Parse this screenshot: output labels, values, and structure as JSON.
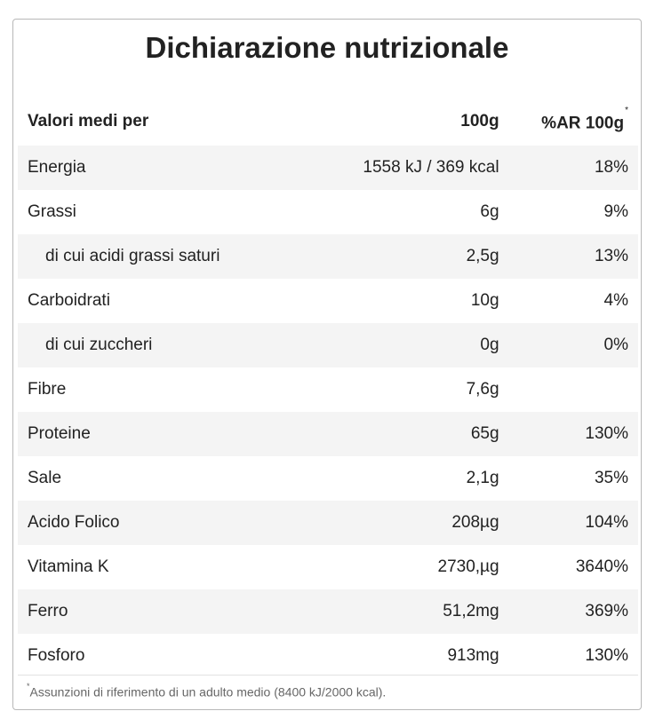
{
  "title": "Dichiarazione nutrizionale",
  "header": {
    "col1": "Valori medi per",
    "col2": "100g",
    "col3": "%AR 100g",
    "col3_mark": "*"
  },
  "rows": [
    {
      "name": "Energia",
      "value": "1558 kJ / 369 kcal",
      "ar": "18%"
    },
    {
      "name": "Grassi",
      "value": "6g",
      "ar": "9%"
    },
    {
      "name": "di cui acidi grassi saturi",
      "value": "2,5g",
      "ar": "13%"
    },
    {
      "name": "Carboidrati",
      "value": "10g",
      "ar": "4%"
    },
    {
      "name": "di cui zuccheri",
      "value": "0g",
      "ar": "0%"
    },
    {
      "name": "Fibre",
      "value": "7,6g",
      "ar": ""
    },
    {
      "name": "Proteine",
      "value": "65g",
      "ar": "130%"
    },
    {
      "name": "Sale",
      "value": "2,1g",
      "ar": "35%"
    },
    {
      "name": "Acido Folico",
      "value": "208µg",
      "ar": "104%"
    },
    {
      "name": "Vitamina K",
      "value": "2730,µg",
      "ar": "3640%"
    },
    {
      "name": "Ferro",
      "value": "51,2mg",
      "ar": "369%"
    },
    {
      "name": "Fosforo",
      "value": "913mg",
      "ar": "130%"
    }
  ],
  "footnote": {
    "mark": "*",
    "text": "Assunzioni di riferimento di un adulto medio (8400 kJ/2000 kcal)."
  }
}
